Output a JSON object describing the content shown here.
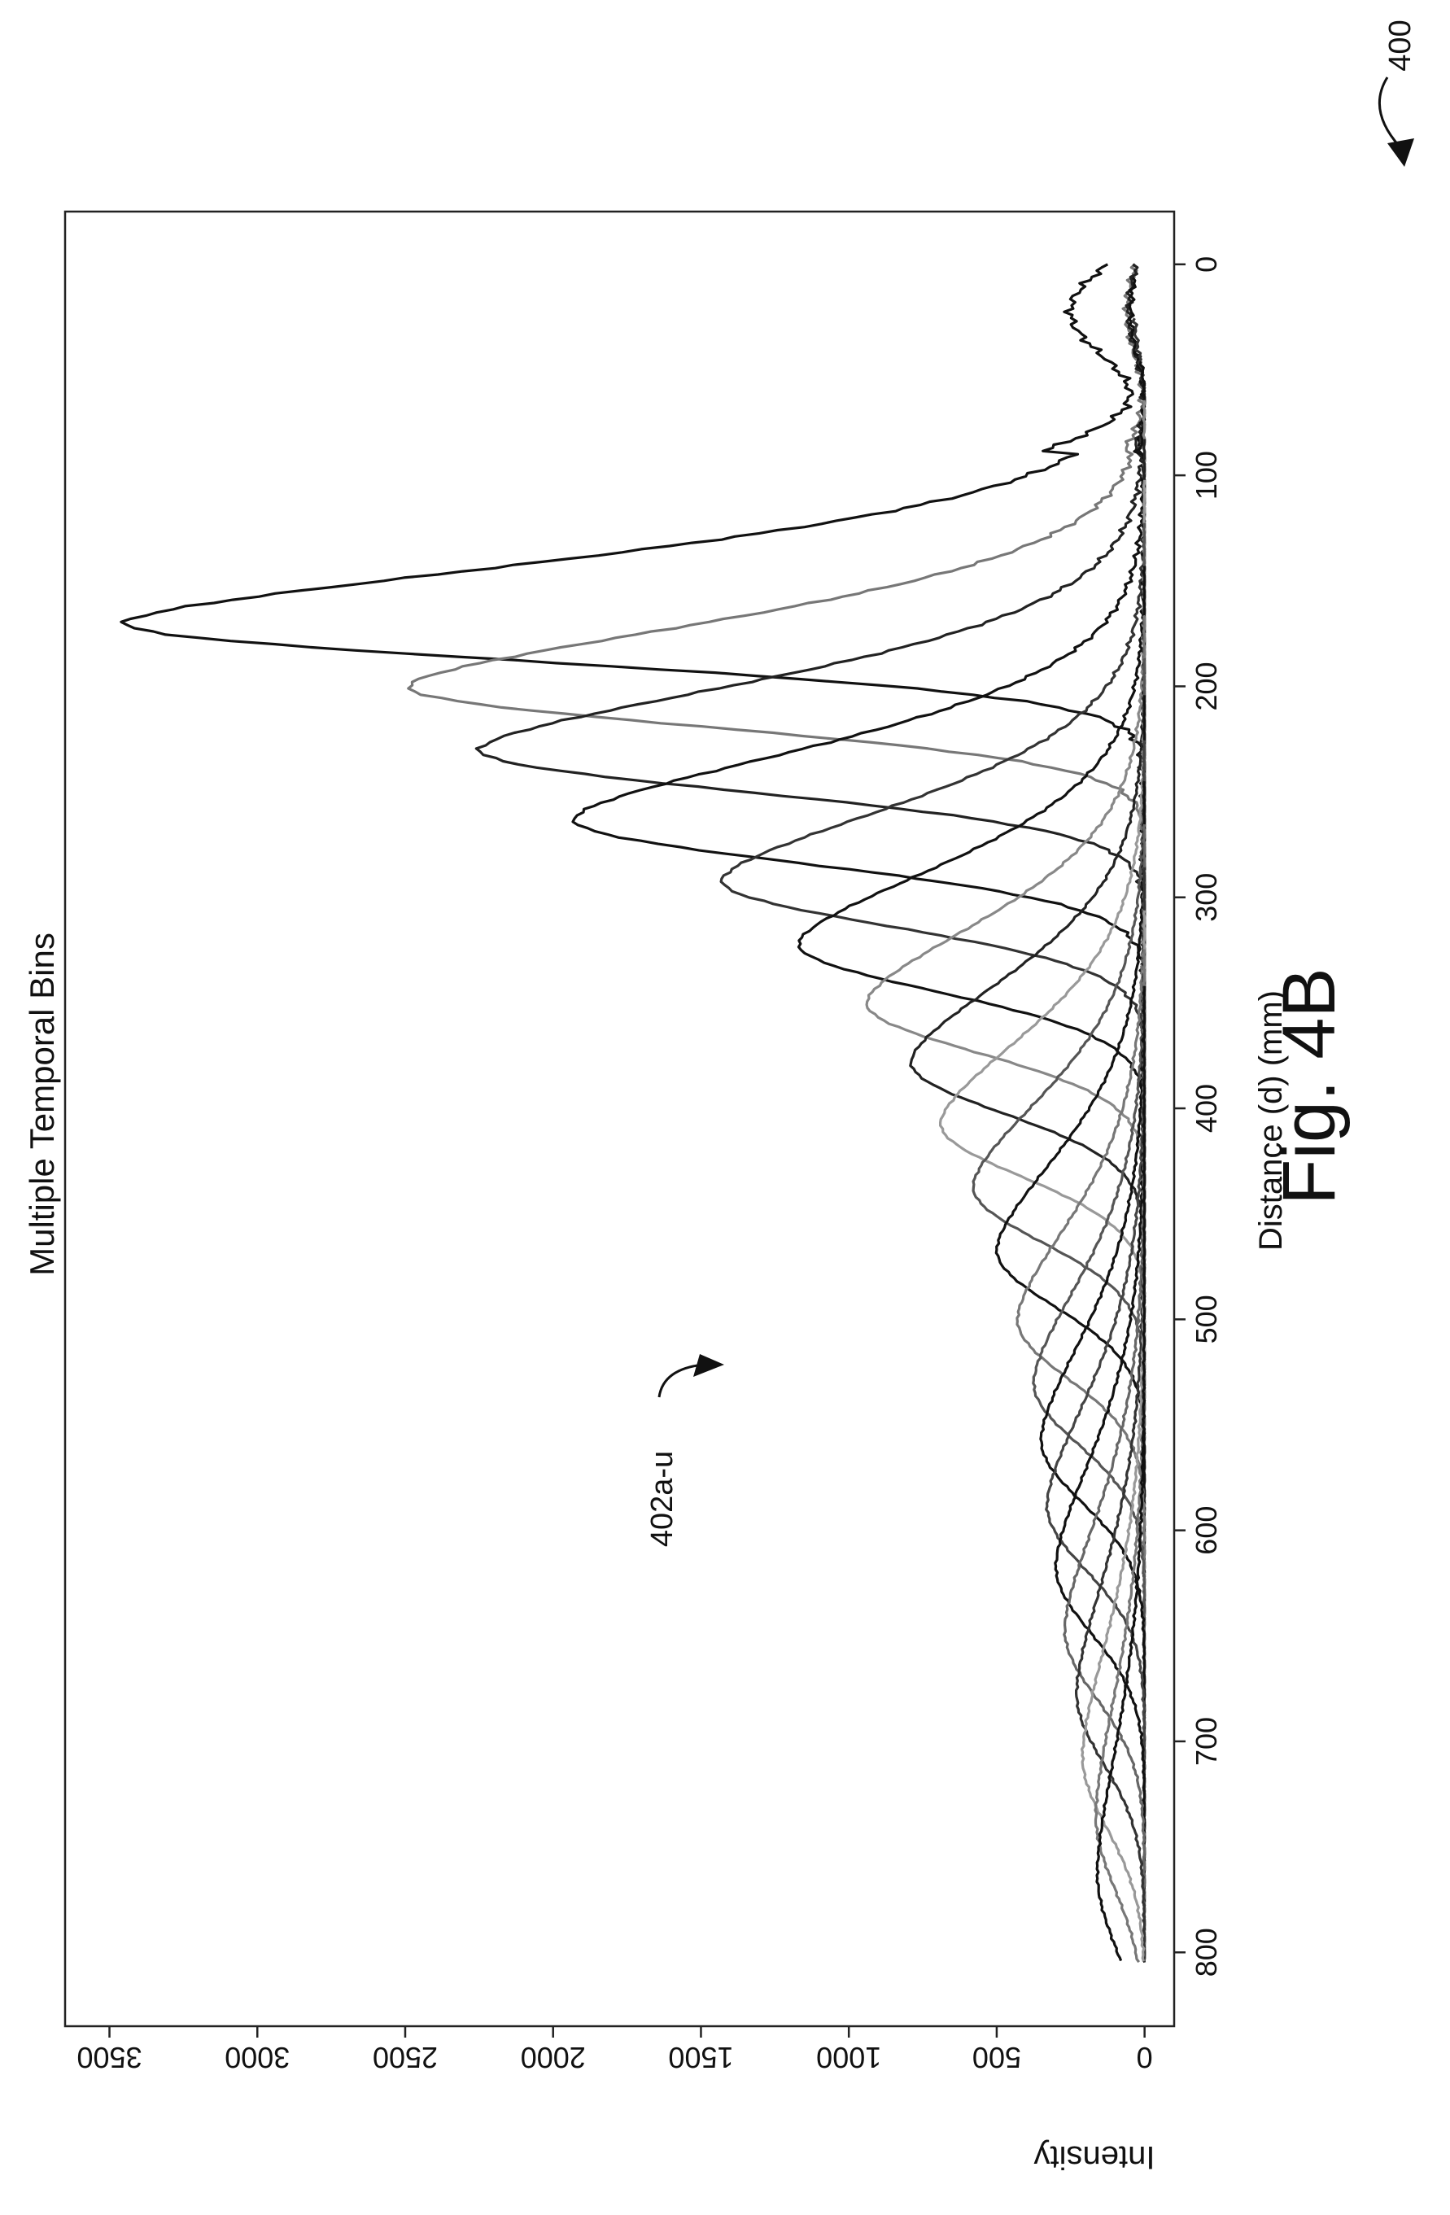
{
  "figure": {
    "ref_number": "400",
    "fig_label": "Fig. 4B",
    "series_ref_label": "402a-u"
  },
  "chart_data": {
    "type": "line",
    "title": "Multiple Temporal Bins",
    "xlabel": "Distance (d) (mm)",
    "ylabel": "Intensity",
    "xlim": [
      -25,
      835
    ],
    "ylim": [
      -100,
      3650
    ],
    "xticks": [
      0,
      100,
      200,
      300,
      400,
      500,
      600,
      700,
      800
    ],
    "yticks": [
      0,
      500,
      1000,
      1500,
      2000,
      2500,
      3000,
      3500
    ],
    "grid": false,
    "legend": "none",
    "rotation": "figure rotated 90 degrees counter-clockwise",
    "series": [
      {
        "peak_x": 170,
        "peak_y": 3450,
        "color": "#111111"
      },
      {
        "peak_x": 200,
        "peak_y": 2490,
        "color": "#777777"
      },
      {
        "peak_x": 230,
        "peak_y": 2250,
        "color": "#222222"
      },
      {
        "peak_x": 263,
        "peak_y": 1930,
        "color": "#111111"
      },
      {
        "peak_x": 292,
        "peak_y": 1430,
        "color": "#333333"
      },
      {
        "peak_x": 322,
        "peak_y": 1170,
        "color": "#111111"
      },
      {
        "peak_x": 350,
        "peak_y": 940,
        "color": "#888888"
      },
      {
        "peak_x": 378,
        "peak_y": 790,
        "color": "#222222"
      },
      {
        "peak_x": 407,
        "peak_y": 690,
        "color": "#999999"
      },
      {
        "peak_x": 437,
        "peak_y": 580,
        "color": "#555555"
      },
      {
        "peak_x": 467,
        "peak_y": 500,
        "color": "#111111"
      },
      {
        "peak_x": 500,
        "peak_y": 430,
        "color": "#777777"
      },
      {
        "peak_x": 530,
        "peak_y": 375,
        "color": "#555555"
      },
      {
        "peak_x": 557,
        "peak_y": 350,
        "color": "#111111"
      },
      {
        "peak_x": 588,
        "peak_y": 330,
        "color": "#444444"
      },
      {
        "peak_x": 617,
        "peak_y": 300,
        "color": "#111111"
      },
      {
        "peak_x": 647,
        "peak_y": 270,
        "color": "#666666"
      },
      {
        "peak_x": 677,
        "peak_y": 230,
        "color": "#333333"
      },
      {
        "peak_x": 707,
        "peak_y": 210,
        "color": "#999999"
      },
      {
        "peak_x": 735,
        "peak_y": 165,
        "color": "#777777"
      },
      {
        "peak_x": 762,
        "peak_y": 160,
        "color": "#111111"
      }
    ]
  }
}
